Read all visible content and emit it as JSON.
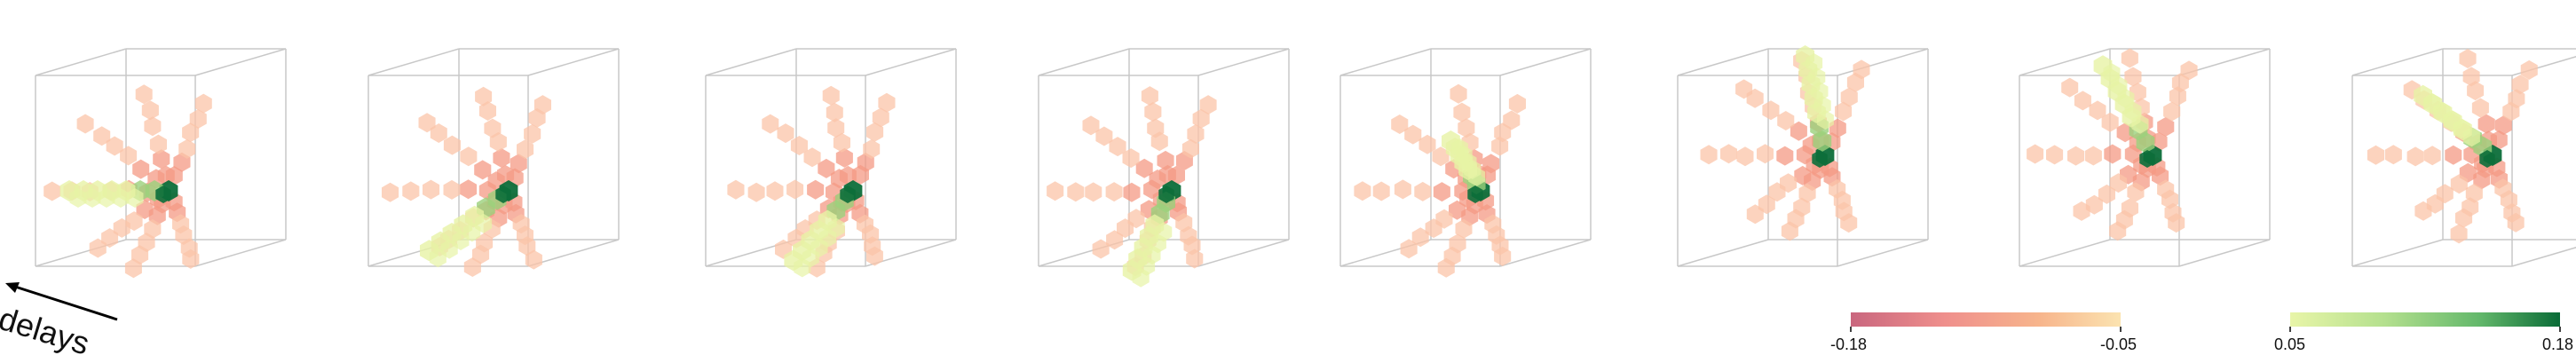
{
  "figure": {
    "panel_count": 8,
    "axis_label": "delays",
    "arrow_icon": "arrow-left-icon"
  },
  "colorbars": [
    {
      "name": "negative",
      "min_label": "-0.18",
      "max_label": "-0.05",
      "colors": [
        "#c9667e",
        "#ef8f8c",
        "#f7b58c",
        "#fbe3b0"
      ]
    },
    {
      "name": "positive",
      "min_label": "0.05",
      "max_label": "0.18",
      "colors": [
        "#e8f5a8",
        "#b4e08e",
        "#63b86b",
        "#0a6b37"
      ]
    }
  ],
  "colors": {
    "box_line": "#c8c8c8",
    "neg_weak": "#fbc4a8",
    "neg_mid": "#f49a84",
    "pos_weak": "#e7f3a5",
    "pos_mid": "#9bd17c",
    "pos_strong": "#0c6e3a"
  }
}
